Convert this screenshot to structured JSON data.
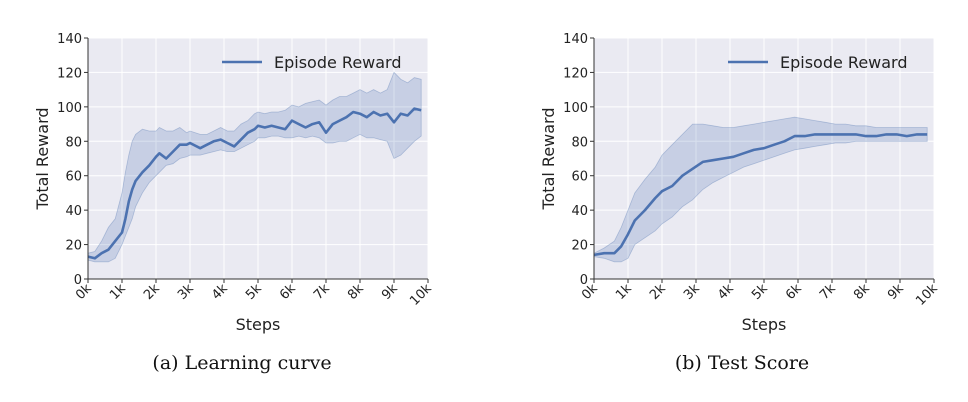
{
  "chart_data": [
    {
      "type": "line",
      "title": "",
      "xlabel": "Steps",
      "ylabel": "Total Reward",
      "xlim": [
        0,
        10000
      ],
      "ylim": [
        0,
        140
      ],
      "xticks": [
        0,
        1000,
        2000,
        3000,
        4000,
        5000,
        6000,
        7000,
        8000,
        9000,
        10000
      ],
      "xtick_labels": [
        "0k",
        "1k",
        "2k",
        "3k",
        "4k",
        "5k",
        "6k",
        "7k",
        "8k",
        "9k",
        "10k"
      ],
      "yticks": [
        0,
        20,
        40,
        60,
        80,
        100,
        120,
        140
      ],
      "grid": true,
      "legend_position": "top-right",
      "series": [
        {
          "name": "Episode Reward",
          "color": "#4c72b0",
          "x": [
            0,
            200,
            400,
            600,
            800,
            1000,
            1100,
            1200,
            1300,
            1400,
            1600,
            1800,
            2000,
            2100,
            2300,
            2500,
            2700,
            2900,
            3000,
            3300,
            3500,
            3700,
            3900,
            4100,
            4300,
            4500,
            4700,
            4900,
            5000,
            5200,
            5400,
            5600,
            5800,
            6000,
            6200,
            6400,
            6600,
            6800,
            7000,
            7200,
            7400,
            7600,
            7800,
            8000,
            8200,
            8400,
            8600,
            8800,
            9000,
            9200,
            9400,
            9600,
            9800
          ],
          "y": [
            13,
            12,
            15,
            17,
            22,
            27,
            35,
            45,
            52,
            57,
            62,
            66,
            71,
            73,
            70,
            74,
            78,
            78,
            79,
            76,
            78,
            80,
            81,
            79,
            77,
            81,
            85,
            87,
            89,
            88,
            89,
            88,
            87,
            92,
            90,
            88,
            90,
            91,
            85,
            90,
            92,
            94,
            97,
            96,
            94,
            97,
            95,
            96,
            91,
            96,
            95,
            99,
            98
          ],
          "lower": [
            11,
            10,
            10,
            10,
            12,
            20,
            25,
            30,
            35,
            42,
            50,
            56,
            60,
            62,
            66,
            67,
            70,
            71,
            72,
            72,
            73,
            74,
            75,
            74,
            74,
            76,
            78,
            80,
            82,
            82,
            83,
            83,
            82,
            82,
            83,
            82,
            83,
            82,
            79,
            79,
            80,
            80,
            82,
            84,
            82,
            82,
            81,
            80,
            70,
            72,
            76,
            80,
            83
          ],
          "upper": [
            15,
            16,
            22,
            30,
            35,
            50,
            62,
            72,
            80,
            84,
            87,
            86,
            86,
            88,
            86,
            86,
            88,
            85,
            86,
            84,
            84,
            86,
            88,
            86,
            86,
            90,
            92,
            96,
            97,
            96,
            97,
            97,
            98,
            101,
            100,
            102,
            103,
            104,
            101,
            104,
            106,
            106,
            108,
            110,
            108,
            110,
            108,
            110,
            120,
            116,
            114,
            117,
            116
          ]
        }
      ]
    },
    {
      "type": "line",
      "title": "",
      "xlabel": "Steps",
      "ylabel": "Total Reward",
      "xlim": [
        0,
        10000
      ],
      "ylim": [
        0,
        140
      ],
      "xticks": [
        0,
        1000,
        2000,
        3000,
        4000,
        5000,
        6000,
        7000,
        8000,
        9000,
        10000
      ],
      "xtick_labels": [
        "0k",
        "1k",
        "2k",
        "3k",
        "4k",
        "5k",
        "6k",
        "7k",
        "8k",
        "9k",
        "10k"
      ],
      "yticks": [
        0,
        20,
        40,
        60,
        80,
        100,
        120,
        140
      ],
      "grid": true,
      "legend_position": "top-right",
      "series": [
        {
          "name": "Episode Reward",
          "color": "#4c72b0",
          "x": [
            0,
            300,
            600,
            800,
            1000,
            1200,
            1500,
            1800,
            2000,
            2300,
            2600,
            2900,
            3200,
            3500,
            3800,
            4100,
            4400,
            4700,
            5000,
            5300,
            5600,
            5900,
            6200,
            6500,
            6800,
            7100,
            7400,
            7700,
            8000,
            8300,
            8600,
            8900,
            9200,
            9500,
            9800
          ],
          "y": [
            14,
            15,
            15,
            19,
            26,
            34,
            40,
            47,
            51,
            54,
            60,
            64,
            68,
            69,
            70,
            71,
            73,
            75,
            76,
            78,
            80,
            83,
            83,
            84,
            84,
            84,
            84,
            84,
            83,
            83,
            84,
            84,
            83,
            84,
            84
          ],
          "lower": [
            13,
            12,
            10,
            10,
            12,
            20,
            24,
            28,
            32,
            36,
            42,
            46,
            52,
            56,
            59,
            62,
            65,
            67,
            69,
            71,
            73,
            75,
            76,
            77,
            78,
            79,
            79,
            80,
            80,
            80,
            80,
            80,
            80,
            80,
            80
          ],
          "upper": [
            15,
            18,
            22,
            30,
            40,
            50,
            58,
            65,
            72,
            78,
            84,
            90,
            90,
            89,
            88,
            88,
            89,
            90,
            91,
            92,
            93,
            94,
            93,
            92,
            91,
            90,
            90,
            89,
            89,
            88,
            88,
            88,
            88,
            88,
            88
          ]
        }
      ]
    }
  ],
  "captions": {
    "a": "(a) Learning curve",
    "b": "(b) Test Score"
  }
}
